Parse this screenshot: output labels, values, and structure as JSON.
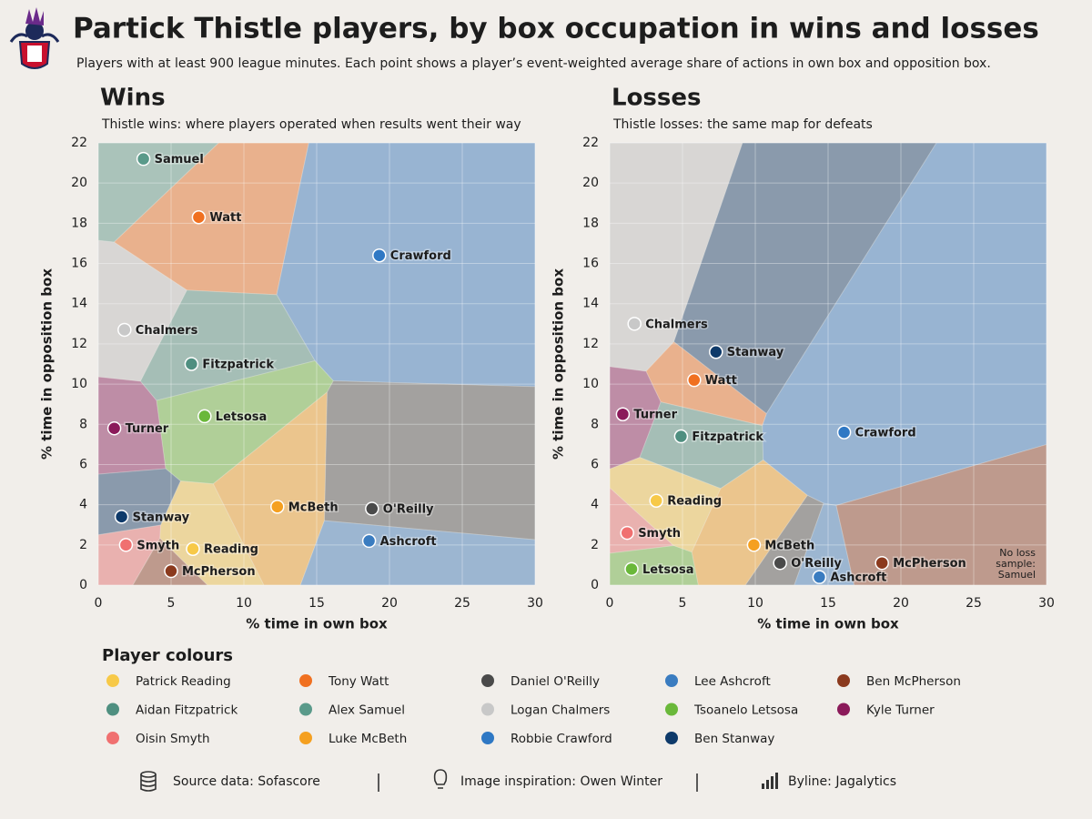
{
  "header": {
    "title": "Partick Thistle players, by box occupation in wins and losses",
    "subtitle": "Players with at least 900 league minutes. Each point shows a player’s event-weighted average share of actions in own box and opposition box."
  },
  "chart_data": [
    {
      "type": "scatter",
      "title": "Wins",
      "subtitle": "Thistle wins: where players operated when results went their way",
      "x_label": "% time in own box",
      "y_label": "% time in opposition box",
      "xlim": [
        0,
        30
      ],
      "ylim": [
        0,
        22
      ],
      "xticks": [
        0,
        5,
        10,
        15,
        20,
        25,
        30
      ],
      "yticks": [
        0,
        2,
        4,
        6,
        8,
        10,
        12,
        14,
        16,
        18,
        20,
        22
      ],
      "grid": true,
      "voronoi": true,
      "points": [
        {
          "label": "Samuel",
          "x": 3.1,
          "y": 21.2,
          "color": "#5a9a8a"
        },
        {
          "label": "Watt",
          "x": 6.9,
          "y": 18.3,
          "color": "#f07020"
        },
        {
          "label": "Crawford",
          "x": 19.3,
          "y": 16.4,
          "color": "#2f78c4"
        },
        {
          "label": "Chalmers",
          "x": 1.8,
          "y": 12.7,
          "color": "#c8c8c8"
        },
        {
          "label": "Fitzpatrick",
          "x": 6.4,
          "y": 11.0,
          "color": "#4f8f80"
        },
        {
          "label": "Letsosa",
          "x": 7.3,
          "y": 8.4,
          "color": "#6ab83a"
        },
        {
          "label": "Turner",
          "x": 1.1,
          "y": 7.8,
          "color": "#8b1a5a"
        },
        {
          "label": "McBeth",
          "x": 12.3,
          "y": 3.9,
          "color": "#f5a020"
        },
        {
          "label": "O'Reilly",
          "x": 18.8,
          "y": 3.8,
          "color": "#4a4a4a"
        },
        {
          "label": "Stanway",
          "x": 1.6,
          "y": 3.4,
          "color": "#0e3a6a"
        },
        {
          "label": "Smyth",
          "x": 1.9,
          "y": 2.0,
          "color": "#f07070"
        },
        {
          "label": "Reading",
          "x": 6.5,
          "y": 1.8,
          "color": "#f7c948"
        },
        {
          "label": "Ashcroft",
          "x": 18.6,
          "y": 2.2,
          "color": "#3a7cc0"
        },
        {
          "label": "McPherson",
          "x": 5.0,
          "y": 0.7,
          "color": "#8b3a1e"
        }
      ]
    },
    {
      "type": "scatter",
      "title": "Losses",
      "subtitle": "Thistle losses: the same map for defeats",
      "x_label": "% time in own box",
      "y_label": "% time in opposition box",
      "xlim": [
        0,
        30
      ],
      "ylim": [
        0,
        22
      ],
      "xticks": [
        0,
        5,
        10,
        15,
        20,
        25,
        30
      ],
      "yticks": [
        0,
        2,
        4,
        6,
        8,
        10,
        12,
        14,
        16,
        18,
        20,
        22
      ],
      "grid": true,
      "voronoi": true,
      "annotation": [
        "No loss",
        "sample:",
        "Samuel"
      ],
      "points": [
        {
          "label": "Chalmers",
          "x": 1.7,
          "y": 13.0,
          "color": "#c8c8c8"
        },
        {
          "label": "Stanway",
          "x": 7.3,
          "y": 11.6,
          "color": "#0e3a6a"
        },
        {
          "label": "Watt",
          "x": 5.8,
          "y": 10.2,
          "color": "#f07020"
        },
        {
          "label": "Turner",
          "x": 0.9,
          "y": 8.5,
          "color": "#8b1a5a"
        },
        {
          "label": "Fitzpatrick",
          "x": 4.9,
          "y": 7.4,
          "color": "#4f8f80"
        },
        {
          "label": "Crawford",
          "x": 16.1,
          "y": 7.6,
          "color": "#2f78c4"
        },
        {
          "label": "Reading",
          "x": 3.2,
          "y": 4.2,
          "color": "#f7c948"
        },
        {
          "label": "Smyth",
          "x": 1.2,
          "y": 2.6,
          "color": "#f07070"
        },
        {
          "label": "McBeth",
          "x": 9.9,
          "y": 2.0,
          "color": "#f5a020"
        },
        {
          "label": "McPherson",
          "x": 18.7,
          "y": 1.1,
          "color": "#8b3a1e"
        },
        {
          "label": "O'Reilly",
          "x": 11.7,
          "y": 1.1,
          "color": "#4a4a4a"
        },
        {
          "label": "Letsosa",
          "x": 1.5,
          "y": 0.8,
          "color": "#6ab83a"
        },
        {
          "label": "Ashcroft",
          "x": 14.4,
          "y": 0.4,
          "color": "#3a7cc0"
        }
      ]
    }
  ],
  "legend": {
    "title": "Player colours",
    "entries": [
      {
        "name": "Patrick Reading",
        "color": "#f7c948"
      },
      {
        "name": "Tony Watt",
        "color": "#f07020"
      },
      {
        "name": "Daniel O'Reilly",
        "color": "#4a4a4a"
      },
      {
        "name": "Lee Ashcroft",
        "color": "#3a7cc0"
      },
      {
        "name": "Ben McPherson",
        "color": "#8b3a1e"
      },
      {
        "name": "Aidan Fitzpatrick",
        "color": "#4f8f80"
      },
      {
        "name": "Alex Samuel",
        "color": "#5a9a8a"
      },
      {
        "name": "Logan Chalmers",
        "color": "#c8c8c8"
      },
      {
        "name": "Tsoanelo Letsosa",
        "color": "#6ab83a"
      },
      {
        "name": "Kyle Turner",
        "color": "#8b1a5a"
      },
      {
        "name": "Oisin Smyth",
        "color": "#f07070"
      },
      {
        "name": "Luke McBeth",
        "color": "#f5a020"
      },
      {
        "name": "Robbie Crawford",
        "color": "#2f78c4"
      },
      {
        "name": "Ben Stanway",
        "color": "#0e3a6a"
      }
    ]
  },
  "footer": {
    "items": [
      "Source data: Sofascore",
      "Image inspiration: Owen Winter",
      "Byline: Jagalytics"
    ]
  }
}
